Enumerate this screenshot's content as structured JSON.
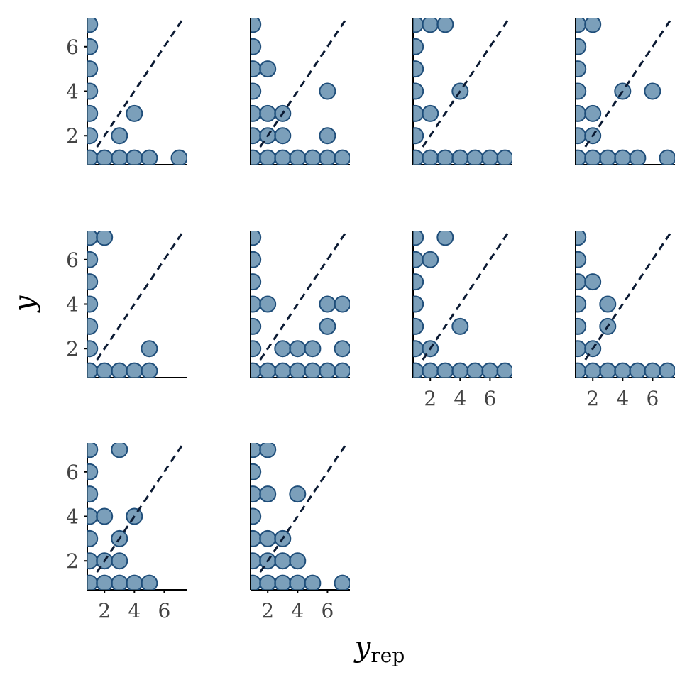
{
  "chart_data": {
    "type": "scatter",
    "title": "",
    "xlabel": "y",
    "xlabel_subscript": "rep",
    "ylabel": "y",
    "xlim": [
      0.85,
      7.5
    ],
    "ylim": [
      0.7,
      7.3
    ],
    "x_ticks": [
      2,
      4,
      6
    ],
    "y_ticks": [
      2,
      4,
      6
    ],
    "reference_line": "y = x (dashed)",
    "grid": false,
    "legend": "none",
    "colors": {
      "point_fill": "#4f7fa3",
      "point_edge": "#1f4e7a",
      "reference_line": "#0b1a33",
      "axis_line": "#000000",
      "tick_text": "#444444"
    },
    "panels": [
      {
        "points": [
          [
            1,
            7
          ],
          [
            1,
            6
          ],
          [
            1,
            5
          ],
          [
            1,
            4
          ],
          [
            1,
            3
          ],
          [
            1,
            2
          ],
          [
            1,
            1
          ],
          [
            2,
            1
          ],
          [
            3,
            1
          ],
          [
            4,
            1
          ],
          [
            5,
            1
          ],
          [
            7.0,
            1
          ],
          [
            3,
            2
          ],
          [
            4,
            3
          ]
        ]
      },
      {
        "points": [
          [
            1,
            7
          ],
          [
            1,
            6
          ],
          [
            1,
            5
          ],
          [
            1,
            4
          ],
          [
            1,
            3
          ],
          [
            1,
            2
          ],
          [
            1,
            1
          ],
          [
            2,
            5
          ],
          [
            2,
            3
          ],
          [
            2,
            2
          ],
          [
            3,
            3
          ],
          [
            3,
            2
          ],
          [
            6,
            4
          ],
          [
            6,
            2
          ],
          [
            2,
            1
          ],
          [
            3,
            1
          ],
          [
            4,
            1
          ],
          [
            5,
            1
          ],
          [
            6,
            1
          ],
          [
            7,
            1
          ]
        ]
      },
      {
        "points": [
          [
            1,
            7
          ],
          [
            1,
            6
          ],
          [
            1,
            5
          ],
          [
            1,
            4
          ],
          [
            1,
            3
          ],
          [
            1,
            2
          ],
          [
            1,
            1
          ],
          [
            2,
            7
          ],
          [
            3,
            7
          ],
          [
            4,
            4
          ],
          [
            2,
            3
          ],
          [
            2,
            1
          ],
          [
            3,
            1
          ],
          [
            4,
            1
          ],
          [
            5,
            1
          ],
          [
            6,
            1
          ],
          [
            7,
            1
          ]
        ]
      },
      {
        "points": [
          [
            1,
            7
          ],
          [
            1,
            6
          ],
          [
            1,
            5
          ],
          [
            1,
            4
          ],
          [
            1,
            3
          ],
          [
            1,
            2
          ],
          [
            1,
            1
          ],
          [
            2,
            7
          ],
          [
            2,
            3
          ],
          [
            2,
            2
          ],
          [
            4,
            4
          ],
          [
            6,
            4
          ],
          [
            2,
            1
          ],
          [
            3,
            1
          ],
          [
            4,
            1
          ],
          [
            5,
            1
          ],
          [
            7,
            1
          ]
        ]
      },
      {
        "points": [
          [
            1,
            7
          ],
          [
            1,
            6
          ],
          [
            1,
            5
          ],
          [
            1,
            4
          ],
          [
            1,
            3
          ],
          [
            1,
            2
          ],
          [
            1,
            1
          ],
          [
            2,
            7
          ],
          [
            5,
            2
          ],
          [
            2,
            1
          ],
          [
            3,
            1
          ],
          [
            4,
            1
          ],
          [
            5,
            1
          ]
        ]
      },
      {
        "points": [
          [
            1,
            7
          ],
          [
            1,
            6
          ],
          [
            1,
            5
          ],
          [
            1,
            4
          ],
          [
            1,
            3
          ],
          [
            1,
            2
          ],
          [
            1,
            1
          ],
          [
            2,
            4
          ],
          [
            3,
            2
          ],
          [
            4,
            2
          ],
          [
            5,
            2
          ],
          [
            6,
            4
          ],
          [
            7,
            4
          ],
          [
            6,
            3
          ],
          [
            7,
            2
          ],
          [
            2,
            1
          ],
          [
            3,
            1
          ],
          [
            4,
            1
          ],
          [
            5,
            1
          ],
          [
            6,
            1
          ],
          [
            7,
            1
          ]
        ]
      },
      {
        "points": [
          [
            1,
            7
          ],
          [
            1,
            6
          ],
          [
            1,
            5
          ],
          [
            1,
            4
          ],
          [
            1,
            3
          ],
          [
            1,
            2
          ],
          [
            1,
            1
          ],
          [
            3,
            7
          ],
          [
            2,
            6
          ],
          [
            4,
            3
          ],
          [
            2,
            2
          ],
          [
            2,
            1
          ],
          [
            3,
            1
          ],
          [
            4,
            1
          ],
          [
            5,
            1
          ],
          [
            6,
            1
          ],
          [
            7,
            1
          ]
        ]
      },
      {
        "points": [
          [
            1,
            7
          ],
          [
            1,
            6
          ],
          [
            1,
            5
          ],
          [
            1,
            4
          ],
          [
            1,
            3
          ],
          [
            1,
            2
          ],
          [
            1,
            1
          ],
          [
            2,
            5
          ],
          [
            3,
            4
          ],
          [
            3,
            3
          ],
          [
            2,
            2
          ],
          [
            2,
            1
          ],
          [
            3,
            1
          ],
          [
            4,
            1
          ],
          [
            5,
            1
          ],
          [
            6,
            1
          ],
          [
            7,
            1
          ]
        ]
      },
      {
        "points": [
          [
            1,
            7
          ],
          [
            1,
            6
          ],
          [
            1,
            5
          ],
          [
            1,
            4
          ],
          [
            1,
            3
          ],
          [
            1,
            2
          ],
          [
            1,
            1
          ],
          [
            3,
            7
          ],
          [
            2,
            4
          ],
          [
            4,
            4
          ],
          [
            3,
            3
          ],
          [
            2,
            2
          ],
          [
            3,
            2
          ],
          [
            2,
            1
          ],
          [
            3,
            1
          ],
          [
            4,
            1
          ],
          [
            5,
            1
          ]
        ]
      },
      {
        "points": [
          [
            1,
            7
          ],
          [
            1,
            6
          ],
          [
            1,
            5
          ],
          [
            1,
            4
          ],
          [
            1,
            3
          ],
          [
            1,
            2
          ],
          [
            1,
            1
          ],
          [
            2,
            7
          ],
          [
            2,
            5
          ],
          [
            4,
            5
          ],
          [
            2,
            3
          ],
          [
            3,
            3
          ],
          [
            2,
            2
          ],
          [
            3,
            2
          ],
          [
            4,
            2
          ],
          [
            2,
            1
          ],
          [
            3,
            1
          ],
          [
            4,
            1
          ],
          [
            5,
            1
          ],
          [
            7,
            1
          ]
        ]
      }
    ]
  }
}
